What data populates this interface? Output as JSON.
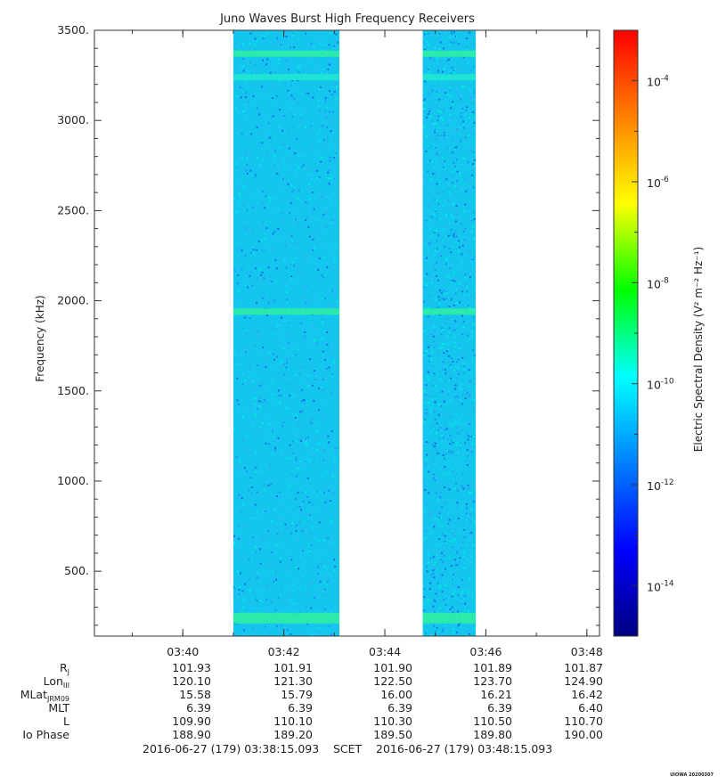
{
  "chart_data": {
    "type": "heatmap",
    "title": "Juno Waves Burst High Frequency Receivers",
    "ylabel": "Frequency (kHz)",
    "ylim": [
      140,
      3500
    ],
    "y_ticks": [
      "3500.",
      "3000.",
      "2500.",
      "2000.",
      "1500.",
      "1000.",
      "500."
    ],
    "y_tick_values": [
      3500,
      3000,
      2500,
      2000,
      1500,
      1000,
      500
    ],
    "xlim": [
      "03:38:15.093",
      "03:48:15.093"
    ],
    "x_ticks": [
      "03:40",
      "03:42",
      "03:44",
      "03:46",
      "03:48"
    ],
    "x_tick_minutes": [
      1.75,
      3.75,
      5.75,
      7.75,
      9.75
    ],
    "data_segments_minutes": [
      [
        2.75,
        4.85
      ],
      [
        6.5,
        7.55
      ]
    ],
    "emission_bands_khz": [
      3370,
      3240,
      1940,
      240
    ],
    "colorbar": {
      "label": "Electric Spectral Density (V² m⁻² Hz⁻¹)",
      "scale": "log",
      "range_exponents": [
        -15,
        -3
      ],
      "tick_labels": [
        "10",
        "10",
        "10",
        "10",
        "10",
        "10"
      ],
      "tick_exponents": [
        "-4",
        "-6",
        "-8",
        "-10",
        "-12",
        "-14"
      ],
      "tick_values": [
        -4,
        -6,
        -8,
        -10,
        -12,
        -14
      ],
      "colors": [
        "#000080",
        "#0000ff",
        "#0080ff",
        "#00ffff",
        "#00ff00",
        "#ffff00",
        "#ff8000",
        "#ff0000"
      ]
    }
  },
  "ephemeris": {
    "row_labels": [
      "R",
      "Lon",
      "MLat",
      "MLT",
      "L",
      "Io Phase"
    ],
    "row_subs": [
      "J",
      "III",
      "JRM09",
      "",
      "",
      ""
    ],
    "rows": [
      [
        "101.93",
        "101.91",
        "101.90",
        "101.89",
        "101.87"
      ],
      [
        "120.10",
        "121.30",
        "122.50",
        "123.70",
        "124.90"
      ],
      [
        "15.58",
        "15.79",
        "16.00",
        "16.21",
        "16.42"
      ],
      [
        "6.39",
        "6.39",
        "6.39",
        "6.39",
        "6.40"
      ],
      [
        "109.90",
        "110.10",
        "110.30",
        "110.50",
        "110.70"
      ],
      [
        "188.90",
        "189.20",
        "189.50",
        "189.80",
        "190.00"
      ]
    ]
  },
  "footer": {
    "start": "2016-06-27 (179) 03:38:15.093",
    "scet": "SCET",
    "end": "2016-06-27 (179) 03:48:15.093"
  },
  "credit": "UIOWA 20200307"
}
